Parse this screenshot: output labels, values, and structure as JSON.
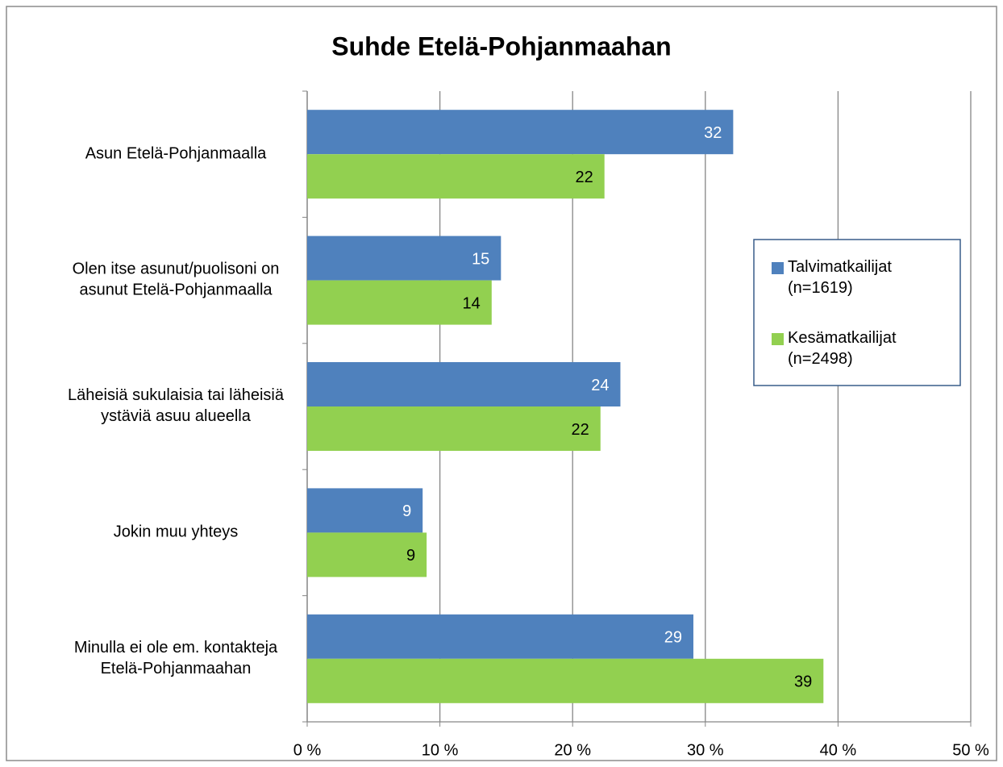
{
  "chart_data": {
    "type": "barh",
    "title": "Suhde Etelä-Pohjanmaahan",
    "categories": [
      "Asun Etelä-Pohjanmaalla",
      "Olen itse asunut/puolisoni on\nasunut Etelä-Pohjanmaalla",
      "Läheisiä sukulaisia tai läheisiä\nystäviä asuu alueella",
      "Jokin muu yhteys",
      "Minulla ei ole em. kontakteja\nEtelä-Pohjanmaahan"
    ],
    "series": [
      {
        "name": "Talvimatkailijat\n(n=1619)",
        "color": "#4f81bd",
        "label_color": "#ffffff",
        "values": [
          32.1,
          14.6,
          23.6,
          8.7,
          29.1
        ],
        "value_labels": [
          "32",
          "15",
          "24",
          "9",
          "29"
        ]
      },
      {
        "name": "Kesämatkailijat\n(n=2498)",
        "color": "#92d050",
        "label_color": "#000000",
        "values": [
          22.4,
          13.9,
          22.1,
          9.0,
          38.9
        ],
        "value_labels": [
          "22",
          "14",
          "22",
          "9",
          "39"
        ]
      }
    ],
    "xlim": [
      0,
      50
    ],
    "xticks": [
      {
        "value": 0,
        "label": "0 %"
      },
      {
        "value": 10,
        "label": "10 %"
      },
      {
        "value": 20,
        "label": "20 %"
      },
      {
        "value": 30,
        "label": "30 %"
      },
      {
        "value": 40,
        "label": "40 %"
      },
      {
        "value": 50,
        "label": "50 %"
      }
    ],
    "grid": true,
    "legend": "right"
  }
}
